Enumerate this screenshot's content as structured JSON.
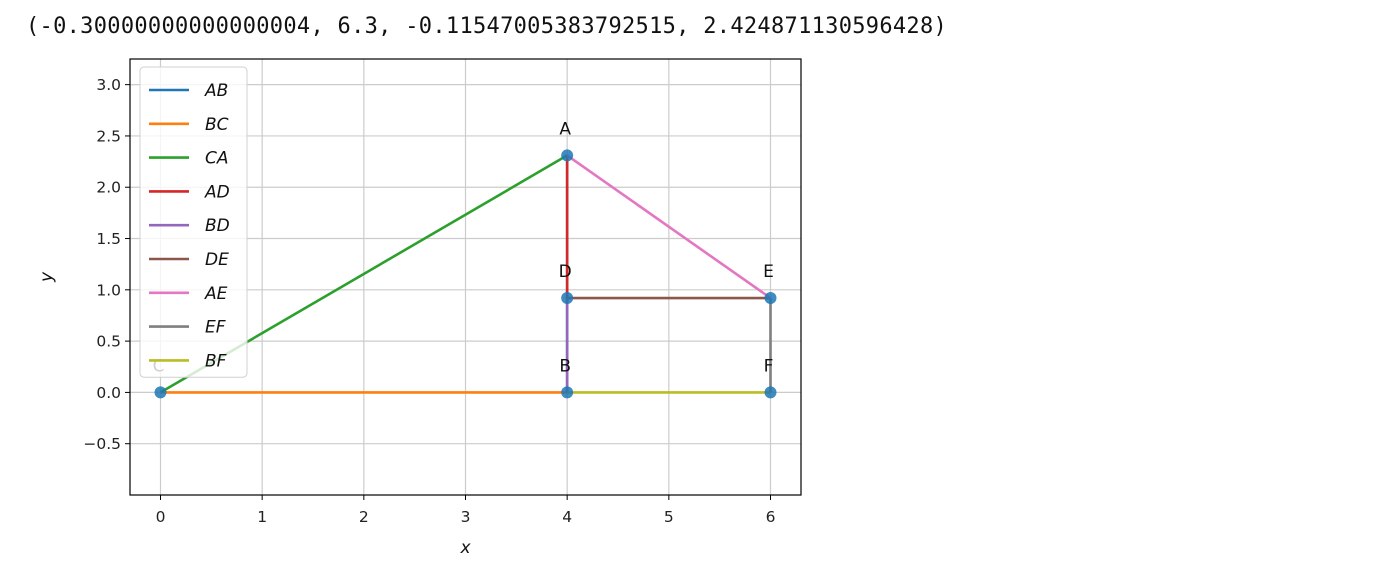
{
  "output_text": "(-0.30000000000000004, 6.3, -0.11547005383792515, 2.424871130596428)",
  "chart_data": {
    "type": "line",
    "xlabel": "x",
    "ylabel": "y",
    "xlim": [
      -0.3,
      6.3
    ],
    "ylim": [
      -1.0,
      3.25
    ],
    "xticks": [
      0,
      1,
      2,
      3,
      4,
      5,
      6
    ],
    "yticks": [
      -0.5,
      0.0,
      0.5,
      1.0,
      1.5,
      2.0,
      2.5,
      3.0
    ],
    "xtick_labels": [
      "0",
      "1",
      "2",
      "3",
      "4",
      "5",
      "6"
    ],
    "ytick_labels": [
      "−0.5",
      "0.0",
      "0.5",
      "1.0",
      "1.5",
      "2.0",
      "2.5",
      "3.0"
    ],
    "grid": true,
    "legend_position": "upper-left",
    "points": [
      {
        "label": "A",
        "x": 4,
        "y": 2.31
      },
      {
        "label": "B",
        "x": 4,
        "y": 0
      },
      {
        "label": "C",
        "x": 0,
        "y": 0
      },
      {
        "label": "D",
        "x": 4,
        "y": 0.92
      },
      {
        "label": "E",
        "x": 6,
        "y": 0.92
      },
      {
        "label": "F",
        "x": 6,
        "y": 0
      }
    ],
    "series": [
      {
        "name": "AB",
        "color": "#1f77b4",
        "from": "A",
        "to": "B"
      },
      {
        "name": "BC",
        "color": "#ff7f0e",
        "from": "B",
        "to": "C"
      },
      {
        "name": "CA",
        "color": "#2ca02c",
        "from": "C",
        "to": "A"
      },
      {
        "name": "AD",
        "color": "#d62728",
        "from": "A",
        "to": "D"
      },
      {
        "name": "BD",
        "color": "#9467bd",
        "from": "B",
        "to": "D"
      },
      {
        "name": "DE",
        "color": "#8c564b",
        "from": "D",
        "to": "E"
      },
      {
        "name": "AE",
        "color": "#e377c2",
        "from": "A",
        "to": "E"
      },
      {
        "name": "EF",
        "color": "#7f7f7f",
        "from": "E",
        "to": "F"
      },
      {
        "name": "BF",
        "color": "#bcbd22",
        "from": "B",
        "to": "F"
      }
    ],
    "point_color": "#1f77b4"
  }
}
